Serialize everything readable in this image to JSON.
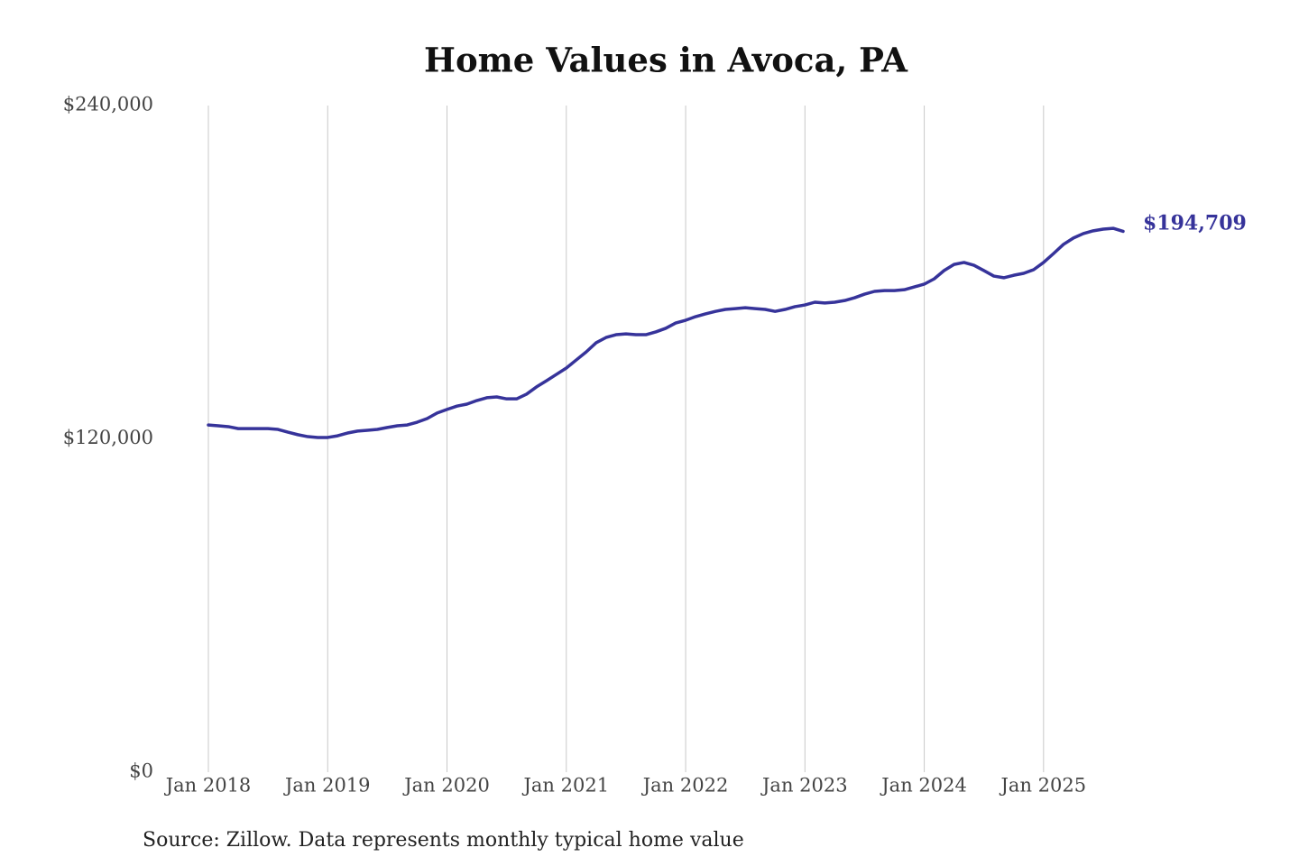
{
  "chart_data": {
    "type": "line",
    "title": "Home Values in Avoca, PA",
    "source": "Source: Zillow. Data represents monthly typical home value",
    "x": [
      "2018-01",
      "2018-02",
      "2018-03",
      "2018-04",
      "2018-05",
      "2018-06",
      "2018-07",
      "2018-08",
      "2018-09",
      "2018-10",
      "2018-11",
      "2018-12",
      "2019-01",
      "2019-02",
      "2019-03",
      "2019-04",
      "2019-05",
      "2019-06",
      "2019-07",
      "2019-08",
      "2019-09",
      "2019-10",
      "2019-11",
      "2019-12",
      "2020-01",
      "2020-02",
      "2020-03",
      "2020-04",
      "2020-05",
      "2020-06",
      "2020-07",
      "2020-08",
      "2020-09",
      "2020-10",
      "2020-11",
      "2020-12",
      "2021-01",
      "2021-02",
      "2021-03",
      "2021-04",
      "2021-05",
      "2021-06",
      "2021-07",
      "2021-08",
      "2021-09",
      "2021-10",
      "2021-11",
      "2021-12",
      "2022-01",
      "2022-02",
      "2022-03",
      "2022-04",
      "2022-05",
      "2022-06",
      "2022-07",
      "2022-08",
      "2022-09",
      "2022-10",
      "2022-11",
      "2022-12",
      "2023-01",
      "2023-02",
      "2023-03",
      "2023-04",
      "2023-05",
      "2023-06",
      "2023-07",
      "2023-08",
      "2023-09",
      "2023-10",
      "2023-11",
      "2023-12",
      "2024-01",
      "2024-02",
      "2024-03",
      "2024-04",
      "2024-05",
      "2024-06",
      "2024-07",
      "2024-08",
      "2024-09",
      "2024-10",
      "2024-11",
      "2024-12",
      "2025-01",
      "2025-02",
      "2025-03",
      "2025-04",
      "2025-05",
      "2025-06",
      "2025-07",
      "2025-08",
      "2025-09"
    ],
    "series": [
      {
        "name": "Avoca, PA",
        "color": "#36339a",
        "values": [
          125000,
          124700,
          124400,
          123700,
          123700,
          123700,
          123700,
          123400,
          122400,
          121500,
          120800,
          120500,
          120500,
          121100,
          122100,
          122800,
          123100,
          123400,
          124100,
          124700,
          125000,
          126000,
          127300,
          129300,
          130600,
          131800,
          132500,
          133800,
          134800,
          135100,
          134400,
          134400,
          136100,
          138700,
          140900,
          143200,
          145500,
          148400,
          151300,
          154600,
          156500,
          157500,
          157800,
          157500,
          157500,
          158500,
          159800,
          161700,
          162700,
          164000,
          165000,
          165900,
          166600,
          166900,
          167200,
          166900,
          166600,
          165900,
          166600,
          167600,
          168200,
          169200,
          168900,
          169200,
          169800,
          170800,
          172100,
          173100,
          173400,
          173400,
          173700,
          174700,
          175700,
          177600,
          180600,
          182800,
          183500,
          182500,
          180600,
          178600,
          178000,
          178900,
          179600,
          180900,
          183500,
          186700,
          190000,
          192300,
          193900,
          194900,
          195500,
          195800,
          194709
        ],
        "value_labels": [
          null,
          null,
          null,
          null,
          null,
          null,
          null,
          null,
          null,
          null,
          null,
          null,
          null,
          null,
          null,
          null,
          null,
          null,
          null,
          null,
          null,
          null,
          null,
          null,
          null,
          null,
          null,
          null,
          null,
          null,
          null,
          null,
          null,
          null,
          null,
          null,
          null,
          null,
          null,
          null,
          null,
          null,
          null,
          null,
          null,
          null,
          null,
          null,
          null,
          null,
          null,
          null,
          null,
          null,
          null,
          null,
          null,
          null,
          null,
          null,
          null,
          null,
          null,
          null,
          null,
          null,
          null,
          null,
          null,
          null,
          null,
          null,
          null,
          null,
          null,
          null,
          null,
          null,
          null,
          null,
          null,
          null,
          null,
          null,
          null,
          null,
          null,
          null,
          null,
          null,
          null,
          null,
          "$194,709"
        ]
      }
    ],
    "xlim": [
      "2018-01",
      "2025-09"
    ],
    "xticks": [
      {
        "value": "2018-01",
        "label": "Jan 2018"
      },
      {
        "value": "2019-01",
        "label": "Jan 2019"
      },
      {
        "value": "2020-01",
        "label": "Jan 2020"
      },
      {
        "value": "2021-01",
        "label": "Jan 2021"
      },
      {
        "value": "2022-01",
        "label": "Jan 2022"
      },
      {
        "value": "2023-01",
        "label": "Jan 2023"
      },
      {
        "value": "2024-01",
        "label": "Jan 2024"
      },
      {
        "value": "2025-01",
        "label": "Jan 2025"
      }
    ],
    "ylim": [
      0,
      240000
    ],
    "yticks": [
      {
        "value": 0,
        "label": "$0"
      },
      {
        "value": 120000,
        "label": "$120,000"
      },
      {
        "value": 240000,
        "label": "$240,000"
      }
    ],
    "grid": "x"
  }
}
